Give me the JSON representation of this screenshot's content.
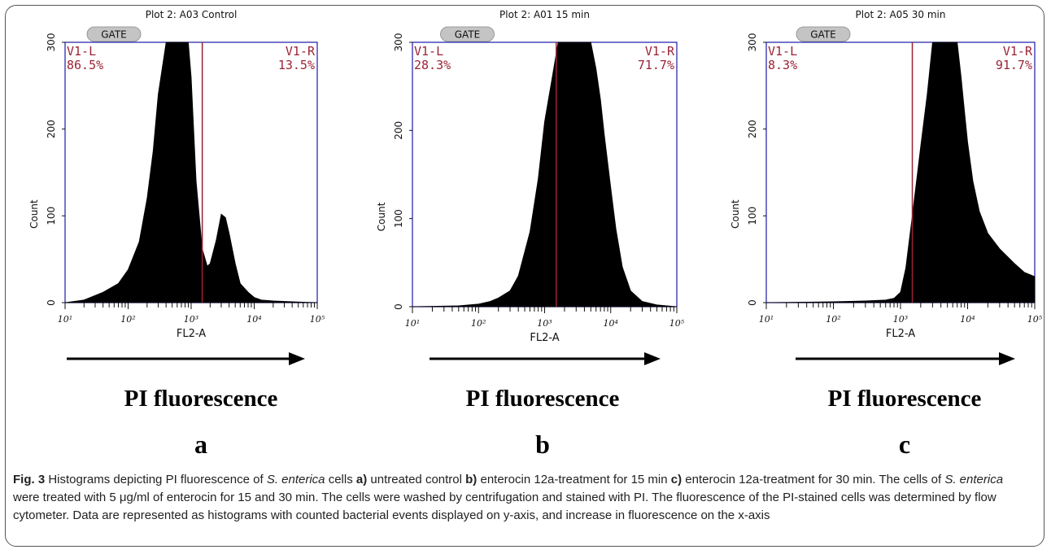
{
  "chart_data": [
    {
      "type": "area",
      "title": "Plot 2: A03 Control",
      "gate_label": "GATE",
      "xlabel": "FL2-A",
      "ylabel": "Count",
      "x_scale": "log",
      "xlim": [
        10,
        100000
      ],
      "ylim": [
        0,
        300
      ],
      "x_ticks": [
        "10¹",
        "10²",
        "10³",
        "10⁴",
        "10⁵"
      ],
      "y_ticks": [
        "0",
        "100",
        "200",
        "300"
      ],
      "gate_value": 1500,
      "region_left": {
        "name": "V1-L",
        "percent": "86.5%"
      },
      "region_right": {
        "name": "V1-R",
        "percent": "13.5%"
      },
      "x": [
        10,
        20,
        40,
        70,
        100,
        150,
        200,
        250,
        300,
        400,
        500,
        600,
        700,
        800,
        900,
        1000,
        1200,
        1500,
        1800,
        2000,
        2500,
        3000,
        3500,
        4000,
        5000,
        6000,
        8000,
        10000,
        13000,
        20000,
        40000,
        100000
      ],
      "values": [
        0,
        3,
        12,
        22,
        38,
        70,
        120,
        175,
        240,
        300,
        300,
        300,
        300,
        300,
        300,
        260,
        140,
        62,
        42,
        45,
        72,
        102,
        98,
        80,
        45,
        22,
        12,
        6,
        3,
        2,
        1,
        0
      ],
      "arrow_label": "PI fluorescence",
      "panel_letter": "a"
    },
    {
      "type": "area",
      "title": "Plot 2: A01 15 min",
      "gate_label": "GATE",
      "xlabel": "FL2-A",
      "ylabel": "Count",
      "x_scale": "log",
      "xlim": [
        10,
        100000
      ],
      "ylim": [
        0,
        300
      ],
      "x_ticks": [
        "10¹",
        "10²",
        "10³",
        "10⁴",
        "10⁵"
      ],
      "y_ticks": [
        "0",
        "100",
        "200",
        "300"
      ],
      "gate_value": 1500,
      "region_left": {
        "name": "V1-L",
        "percent": "28.3%"
      },
      "region_right": {
        "name": "V1-R",
        "percent": "71.7%"
      },
      "x": [
        10,
        50,
        100,
        150,
        200,
        300,
        400,
        600,
        800,
        1000,
        1300,
        1600,
        2000,
        2500,
        3000,
        4000,
        5000,
        6000,
        7000,
        8000,
        10000,
        12000,
        15000,
        20000,
        30000,
        50000,
        100000
      ],
      "values": [
        0,
        1,
        3,
        6,
        10,
        18,
        35,
        85,
        145,
        210,
        260,
        300,
        300,
        300,
        300,
        300,
        300,
        270,
        235,
        195,
        135,
        88,
        45,
        18,
        6,
        2,
        0
      ],
      "arrow_label": "PI fluorescence",
      "panel_letter": "b"
    },
    {
      "type": "area",
      "title": "Plot 2: A05 30 min",
      "gate_label": "GATE",
      "xlabel": "FL2-A",
      "ylabel": "Count",
      "x_scale": "log",
      "xlim": [
        10,
        100000
      ],
      "ylim": [
        0,
        300
      ],
      "x_ticks": [
        "10¹",
        "10²",
        "10³",
        "10⁴",
        "10⁵"
      ],
      "y_ticks": [
        "0",
        "100",
        "200",
        "300"
      ],
      "gate_value": 1500,
      "region_left": {
        "name": "V1-L",
        "percent": "8.3%"
      },
      "region_right": {
        "name": "V1-R",
        "percent": "91.7%"
      },
      "x": [
        10,
        100,
        300,
        600,
        800,
        1000,
        1200,
        1500,
        2000,
        2500,
        3000,
        4000,
        5000,
        6000,
        7000,
        8000,
        9000,
        10000,
        12000,
        15000,
        20000,
        30000,
        50000,
        70000,
        100000
      ],
      "values": [
        0,
        1,
        2,
        3,
        5,
        12,
        40,
        100,
        180,
        240,
        300,
        300,
        300,
        300,
        300,
        260,
        220,
        185,
        140,
        105,
        80,
        62,
        45,
        35,
        30
      ],
      "arrow_label": "PI fluorescence",
      "panel_letter": "c"
    }
  ],
  "caption": {
    "fig_label": "Fig. 3",
    "part1": " Histograms depicting PI fluorescence of ",
    "species1": "S. enterica",
    "part2": " cells ",
    "label_a": "a)",
    "text_a": " untreated control ",
    "label_b": "b)",
    "text_b": " enterocin 12a-treatment for 15 min ",
    "label_c": "c)",
    "text_c": " enterocin 12a-treatment for 30 min. The cells of ",
    "species2": "S. enterica",
    "part3": " were treated with 5 μg/ml of enterocin for 15 and 30 min. The cells were washed by centrifugation and stained with PI. The fluorescence of the PI-stained cells was determined by flow cytometer. Data are represented as histograms with counted bacterial events displayed on y-axis, and increase in fluorescence on the x-axis"
  }
}
